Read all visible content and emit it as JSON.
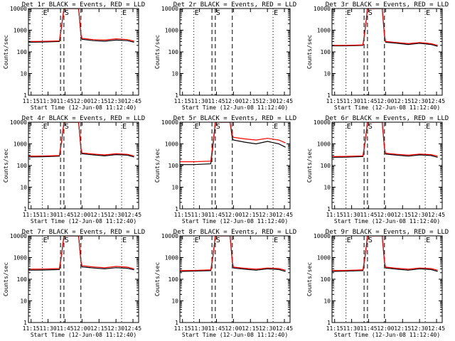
{
  "figure": {
    "x_label": "Start Time (12-Jun-08 11:12:40)",
    "y_label": "Counts/sec",
    "x_tick_labels": [
      "11:15",
      "11:30",
      "11:45",
      "12:00",
      "12:15",
      "12:30",
      "12:45"
    ],
    "y_tick_labels": [
      "1",
      "10",
      "100",
      "1000",
      "10000"
    ],
    "marker_labels": [
      "E",
      "S",
      "E"
    ]
  },
  "colors": {
    "events": "#000000",
    "lld": "#ff0000",
    "axes": "#000000",
    "background": "#ffffff"
  },
  "chart_data": [
    {
      "type": "line",
      "title": "Det 1r BLACK = Events, RED = LLD",
      "xlabel": "Start Time (12-Jun-08 11:12:40)",
      "ylabel": "Counts/sec",
      "yscale": "log",
      "ylim": [
        1,
        10000
      ],
      "xlim": [
        "11:12:40",
        "12:50:00"
      ],
      "x_ticks": [
        "11:15",
        "11:30",
        "11:45",
        "12:00",
        "12:15",
        "12:30",
        "12:45"
      ],
      "markers": [
        {
          "label": "E",
          "x": "11:25",
          "style": "dotted"
        },
        {
          "label": "",
          "x": "11:41",
          "style": "dashed"
        },
        {
          "label": "S",
          "x": "11:44",
          "style": "dashed"
        },
        {
          "label": "",
          "x": "11:59",
          "style": "dashed"
        },
        {
          "label": "E",
          "x": "12:35",
          "style": "dotted"
        }
      ],
      "series": [
        {
          "name": "Events",
          "x": [
            "11:12:40",
            "11:25",
            "11:40",
            "11:42",
            "11:44",
            "11:57",
            "11:59",
            "12:00",
            "12:10",
            "12:20",
            "12:30",
            "12:40",
            "12:46"
          ],
          "values": [
            280,
            285,
            300,
            1500,
            10000,
            10000,
            600,
            380,
            330,
            310,
            350,
            330,
            280
          ]
        },
        {
          "name": "LLD",
          "x": [
            "11:12:40",
            "11:25",
            "11:40",
            "11:42",
            "11:44",
            "11:57",
            "11:59",
            "12:00",
            "12:10",
            "12:20",
            "12:30",
            "12:40",
            "12:46"
          ],
          "values": [
            300,
            305,
            320,
            1600,
            10000,
            10000,
            650,
            420,
            370,
            350,
            400,
            370,
            310
          ]
        }
      ]
    },
    {
      "type": "line",
      "title": "Det 2r BLACK = Events, RED = LLD",
      "xlabel": "Start Time (12-Jun-08 11:12:40)",
      "ylabel": "Counts/sec",
      "yscale": "log",
      "ylim": [
        1,
        10000
      ],
      "xlim": [
        "11:12:40",
        "12:50:00"
      ],
      "x_ticks": [
        "11:15",
        "11:30",
        "11:45",
        "12:00",
        "12:15",
        "12:30",
        "12:45"
      ],
      "markers": [
        {
          "label": "E",
          "x": "11:25",
          "style": "dotted"
        },
        {
          "label": "",
          "x": "11:41",
          "style": "dashed"
        },
        {
          "label": "S",
          "x": "11:44",
          "style": "dashed"
        },
        {
          "label": "",
          "x": "11:59",
          "style": "dashed"
        },
        {
          "label": "E",
          "x": "12:35",
          "style": "dotted"
        }
      ],
      "series": []
    },
    {
      "type": "line",
      "title": "Det 3r BLACK = Events, RED = LLD",
      "xlabel": "Start Time (12-Jun-08 11:12:40)",
      "ylabel": "Counts/sec",
      "yscale": "log",
      "ylim": [
        1,
        10000
      ],
      "xlim": [
        "11:12:40",
        "12:50:00"
      ],
      "x_ticks": [
        "11:15",
        "11:30",
        "11:45",
        "12:00",
        "12:15",
        "12:30",
        "12:45"
      ],
      "markers": [
        {
          "label": "E",
          "x": "11:25",
          "style": "dotted"
        },
        {
          "label": "",
          "x": "11:41",
          "style": "dashed"
        },
        {
          "label": "S",
          "x": "11:44",
          "style": "dashed"
        },
        {
          "label": "",
          "x": "11:59",
          "style": "dashed"
        },
        {
          "label": "E",
          "x": "12:35",
          "style": "dotted"
        }
      ],
      "series": [
        {
          "name": "Events",
          "x": [
            "11:12:40",
            "11:25",
            "11:40",
            "11:42",
            "11:44",
            "11:57",
            "11:59",
            "12:00",
            "12:10",
            "12:20",
            "12:30",
            "12:40",
            "12:46"
          ],
          "values": [
            190,
            190,
            200,
            1100,
            10000,
            10000,
            550,
            280,
            250,
            220,
            250,
            220,
            180
          ]
        },
        {
          "name": "LLD",
          "x": [
            "11:12:40",
            "11:25",
            "11:40",
            "11:42",
            "11:44",
            "11:57",
            "11:59",
            "12:00",
            "12:10",
            "12:20",
            "12:30",
            "12:40",
            "12:46"
          ],
          "values": [
            200,
            200,
            210,
            1200,
            10000,
            10000,
            600,
            300,
            270,
            240,
            270,
            240,
            200
          ]
        }
      ]
    },
    {
      "type": "line",
      "title": "Det 4r BLACK = Events, RED = LLD",
      "xlabel": "Start Time (12-Jun-08 11:12:40)",
      "ylabel": "Counts/sec",
      "yscale": "log",
      "ylim": [
        1,
        10000
      ],
      "xlim": [
        "11:12:40",
        "12:50:00"
      ],
      "x_ticks": [
        "11:15",
        "11:30",
        "11:45",
        "12:00",
        "12:15",
        "12:30",
        "12:45"
      ],
      "markers": [
        {
          "label": "E",
          "x": "11:25",
          "style": "dotted"
        },
        {
          "label": "",
          "x": "11:41",
          "style": "dashed"
        },
        {
          "label": "S",
          "x": "11:44",
          "style": "dashed"
        },
        {
          "label": "",
          "x": "11:59",
          "style": "dashed"
        },
        {
          "label": "E",
          "x": "12:35",
          "style": "dotted"
        }
      ],
      "series": [
        {
          "name": "Events",
          "x": [
            "11:12:40",
            "11:25",
            "11:40",
            "11:42",
            "11:44",
            "11:57",
            "11:59",
            "12:00",
            "12:10",
            "12:20",
            "12:30",
            "12:40",
            "12:46"
          ],
          "values": [
            250,
            255,
            270,
            1300,
            10000,
            10000,
            600,
            350,
            310,
            280,
            320,
            300,
            250
          ]
        },
        {
          "name": "LLD",
          "x": [
            "11:12:40",
            "11:25",
            "11:40",
            "11:42",
            "11:44",
            "11:57",
            "11:59",
            "12:00",
            "12:10",
            "12:20",
            "12:30",
            "12:40",
            "12:46"
          ],
          "values": [
            270,
            275,
            290,
            1400,
            10000,
            10000,
            650,
            380,
            340,
            310,
            350,
            330,
            280
          ]
        }
      ]
    },
    {
      "type": "line",
      "title": "Det 5r BLACK = Events, RED = LLD",
      "xlabel": "Start Time (12-Jun-08 11:12:40)",
      "ylabel": "Counts/sec",
      "yscale": "log",
      "ylim": [
        1,
        10000
      ],
      "xlim": [
        "11:12:40",
        "12:50:00"
      ],
      "x_ticks": [
        "11:15",
        "11:30",
        "11:45",
        "12:00",
        "12:15",
        "12:30",
        "12:45"
      ],
      "markers": [
        {
          "label": "E",
          "x": "11:25",
          "style": "dotted"
        },
        {
          "label": "",
          "x": "11:41",
          "style": "dashed"
        },
        {
          "label": "S",
          "x": "11:44",
          "style": "dashed"
        },
        {
          "label": "",
          "x": "11:59",
          "style": "dashed"
        },
        {
          "label": "E",
          "x": "12:35",
          "style": "dotted"
        }
      ],
      "series": [
        {
          "name": "Events",
          "x": [
            "11:12:40",
            "11:25",
            "11:40",
            "11:42",
            "11:44",
            "11:57",
            "11:59",
            "12:00",
            "12:10",
            "12:20",
            "12:30",
            "12:40",
            "12:46"
          ],
          "values": [
            110,
            110,
            120,
            900,
            10000,
            10000,
            1800,
            1500,
            1200,
            1000,
            1300,
            1000,
            700
          ]
        },
        {
          "name": "LLD",
          "x": [
            "11:12:40",
            "11:25",
            "11:40",
            "11:42",
            "11:44",
            "11:57",
            "11:59",
            "12:00",
            "12:10",
            "12:20",
            "12:30",
            "12:40",
            "12:46"
          ],
          "values": [
            150,
            150,
            160,
            1200,
            10000,
            10000,
            2500,
            2000,
            1700,
            1500,
            1800,
            1500,
            1100
          ]
        }
      ]
    },
    {
      "type": "line",
      "title": "Det 6r BLACK = Events, RED = LLD",
      "xlabel": "Start Time (12-Jun-08 11:12:40)",
      "ylabel": "Counts/sec",
      "yscale": "log",
      "ylim": [
        1,
        10000
      ],
      "xlim": [
        "11:12:40",
        "12:50:00"
      ],
      "x_ticks": [
        "11:15",
        "11:30",
        "11:45",
        "12:00",
        "12:15",
        "12:30",
        "12:45"
      ],
      "markers": [
        {
          "label": "E",
          "x": "11:25",
          "style": "dotted"
        },
        {
          "label": "",
          "x": "11:41",
          "style": "dashed"
        },
        {
          "label": "S",
          "x": "11:44",
          "style": "dashed"
        },
        {
          "label": "",
          "x": "11:59",
          "style": "dashed"
        },
        {
          "label": "E",
          "x": "12:35",
          "style": "dotted"
        }
      ],
      "series": [
        {
          "name": "Events",
          "x": [
            "11:12:40",
            "11:25",
            "11:40",
            "11:42",
            "11:44",
            "11:57",
            "11:59",
            "12:00",
            "12:10",
            "12:20",
            "12:30",
            "12:40",
            "12:46"
          ],
          "values": [
            240,
            245,
            260,
            1300,
            10000,
            10000,
            600,
            340,
            300,
            270,
            310,
            290,
            240
          ]
        },
        {
          "name": "LLD",
          "x": [
            "11:12:40",
            "11:25",
            "11:40",
            "11:42",
            "11:44",
            "11:57",
            "11:59",
            "12:00",
            "12:10",
            "12:20",
            "12:30",
            "12:40",
            "12:46"
          ],
          "values": [
            260,
            265,
            280,
            1400,
            10000,
            10000,
            650,
            370,
            330,
            300,
            340,
            320,
            270
          ]
        }
      ]
    },
    {
      "type": "line",
      "title": "Det 7r BLACK = Events, RED = LLD",
      "xlabel": "Start Time (12-Jun-08 11:12:40)",
      "ylabel": "Counts/sec",
      "yscale": "log",
      "ylim": [
        1,
        10000
      ],
      "xlim": [
        "11:12:40",
        "12:50:00"
      ],
      "x_ticks": [
        "11:15",
        "11:30",
        "11:45",
        "12:00",
        "12:15",
        "12:30",
        "12:45"
      ],
      "markers": [
        {
          "label": "E",
          "x": "11:25",
          "style": "dotted"
        },
        {
          "label": "",
          "x": "11:41",
          "style": "dashed"
        },
        {
          "label": "S",
          "x": "11:44",
          "style": "dashed"
        },
        {
          "label": "",
          "x": "11:59",
          "style": "dashed"
        },
        {
          "label": "E",
          "x": "12:35",
          "style": "dotted"
        }
      ],
      "series": [
        {
          "name": "Events",
          "x": [
            "11:12:40",
            "11:25",
            "11:40",
            "11:42",
            "11:44",
            "11:57",
            "11:59",
            "12:00",
            "12:10",
            "12:20",
            "12:30",
            "12:40",
            "12:46"
          ],
          "values": [
            260,
            265,
            280,
            1400,
            10000,
            10000,
            650,
            370,
            330,
            300,
            340,
            320,
            270
          ]
        },
        {
          "name": "LLD",
          "x": [
            "11:12:40",
            "11:25",
            "11:40",
            "11:42",
            "11:44",
            "11:57",
            "11:59",
            "12:00",
            "12:10",
            "12:20",
            "12:30",
            "12:40",
            "12:46"
          ],
          "values": [
            290,
            295,
            310,
            1500,
            10000,
            10000,
            700,
            420,
            370,
            340,
            390,
            360,
            300
          ]
        }
      ]
    },
    {
      "type": "line",
      "title": "Det 8r BLACK = Events, RED = LLD",
      "xlabel": "Start Time (12-Jun-08 11:12:40)",
      "ylabel": "Counts/sec",
      "yscale": "log",
      "ylim": [
        1,
        10000
      ],
      "xlim": [
        "11:12:40",
        "12:50:00"
      ],
      "x_ticks": [
        "11:15",
        "11:30",
        "11:45",
        "12:00",
        "12:15",
        "12:30",
        "12:45"
      ],
      "markers": [
        {
          "label": "E",
          "x": "11:25",
          "style": "dotted"
        },
        {
          "label": "",
          "x": "11:41",
          "style": "dashed"
        },
        {
          "label": "S",
          "x": "11:44",
          "style": "dashed"
        },
        {
          "label": "",
          "x": "11:59",
          "style": "dashed"
        },
        {
          "label": "E",
          "x": "12:35",
          "style": "dotted"
        }
      ],
      "series": [
        {
          "name": "Events",
          "x": [
            "11:12:40",
            "11:25",
            "11:40",
            "11:42",
            "11:44",
            "11:57",
            "11:59",
            "12:00",
            "12:10",
            "12:20",
            "12:30",
            "12:40",
            "12:46"
          ],
          "values": [
            230,
            235,
            250,
            1200,
            10000,
            10000,
            600,
            330,
            290,
            260,
            300,
            280,
            230
          ]
        },
        {
          "name": "LLD",
          "x": [
            "11:12:40",
            "11:25",
            "11:40",
            "11:42",
            "11:44",
            "11:57",
            "11:59",
            "12:00",
            "12:10",
            "12:20",
            "12:30",
            "12:40",
            "12:46"
          ],
          "values": [
            250,
            255,
            270,
            1300,
            10000,
            10000,
            650,
            360,
            320,
            290,
            330,
            310,
            260
          ]
        }
      ]
    },
    {
      "type": "line",
      "title": "Det 9r BLACK = Events, RED = LLD",
      "xlabel": "Start Time (12-Jun-08 11:12:40)",
      "ylabel": "Counts/sec",
      "yscale": "log",
      "ylim": [
        1,
        10000
      ],
      "xlim": [
        "11:12:40",
        "12:50:00"
      ],
      "x_ticks": [
        "11:15",
        "11:30",
        "11:45",
        "12:00",
        "12:15",
        "12:30",
        "12:45"
      ],
      "markers": [
        {
          "label": "E",
          "x": "11:25",
          "style": "dotted"
        },
        {
          "label": "",
          "x": "11:41",
          "style": "dashed"
        },
        {
          "label": "S",
          "x": "11:44",
          "style": "dashed"
        },
        {
          "label": "",
          "x": "11:59",
          "style": "dashed"
        },
        {
          "label": "E",
          "x": "12:35",
          "style": "dotted"
        }
      ],
      "series": [
        {
          "name": "Events",
          "x": [
            "11:12:40",
            "11:25",
            "11:40",
            "11:42",
            "11:44",
            "11:57",
            "11:59",
            "12:00",
            "12:10",
            "12:20",
            "12:30",
            "12:40",
            "12:46"
          ],
          "values": [
            230,
            235,
            250,
            1200,
            10000,
            10000,
            600,
            330,
            290,
            260,
            300,
            280,
            230
          ]
        },
        {
          "name": "LLD",
          "x": [
            "11:12:40",
            "11:25",
            "11:40",
            "11:42",
            "11:44",
            "11:57",
            "11:59",
            "12:00",
            "12:10",
            "12:20",
            "12:30",
            "12:40",
            "12:46"
          ],
          "values": [
            250,
            255,
            270,
            1300,
            10000,
            10000,
            650,
            360,
            320,
            290,
            330,
            310,
            260
          ]
        }
      ]
    }
  ]
}
